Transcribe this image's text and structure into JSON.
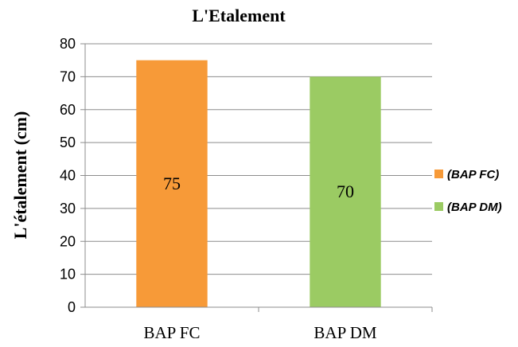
{
  "chart_data": {
    "type": "bar",
    "title": "L'Etalement",
    "xlabel": "",
    "ylabel": "L'étalement (cm)",
    "categories": [
      "BAP FC",
      "BAP DM"
    ],
    "values": [
      75,
      70
    ],
    "data_labels": [
      "75",
      "70"
    ],
    "colors": [
      "#F79A38",
      "#9BCB63"
    ],
    "ylim": [
      0,
      80
    ],
    "yticks": [
      "0",
      "10",
      "20",
      "30",
      "40",
      "50",
      "60",
      "70",
      "80"
    ],
    "grid": true,
    "legend": {
      "position": "right",
      "entries": [
        "(BAP FC)",
        "(BAP DM)"
      ]
    }
  }
}
